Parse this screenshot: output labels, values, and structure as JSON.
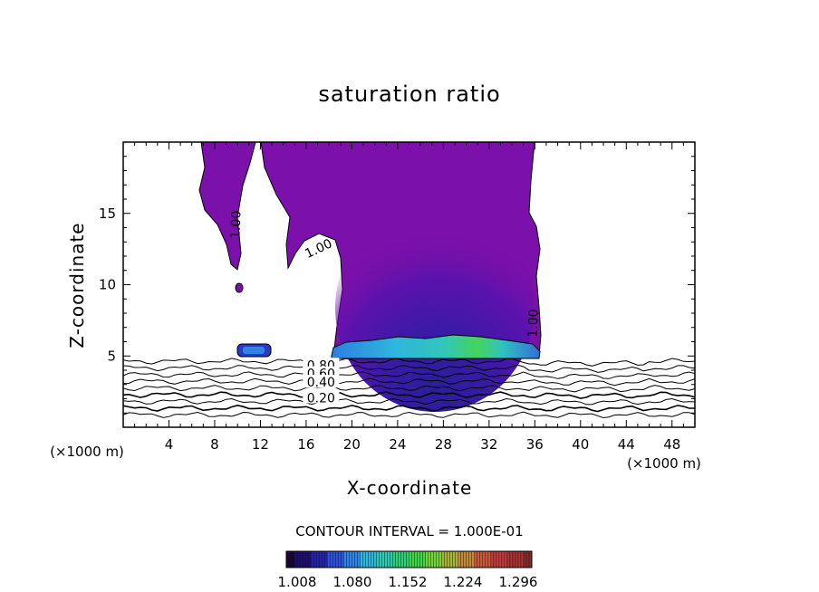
{
  "chart_data": {
    "type": "heatmap",
    "title": "saturation ratio",
    "xlabel": "X-coordinate",
    "ylabel": "Z-coordinate",
    "x_unit_left": "(×1000 m)",
    "x_unit_right": "(×1000 m)",
    "xlim": [
      0,
      50
    ],
    "ylim": [
      0,
      20
    ],
    "x_ticks": [
      4,
      8,
      12,
      16,
      20,
      24,
      28,
      32,
      36,
      40,
      44,
      48
    ],
    "y_ticks": [
      5,
      10,
      15
    ],
    "contour_interval_text": "CONTOUR INTERVAL = 1.000E-01",
    "contour_levels": [
      0.1,
      0.2,
      0.3,
      0.4,
      0.5,
      0.6,
      0.7,
      0.8,
      0.9,
      1.0
    ],
    "contour_labels": [
      {
        "text": "1.00",
        "x": 9.9,
        "y": 14.2,
        "rotate": -88
      },
      {
        "text": "1.00",
        "x": 17.1,
        "y": 12.5,
        "rotate": -25
      },
      {
        "text": "1.00",
        "x": 35.9,
        "y": 7.3,
        "rotate": -88
      },
      {
        "text": "0.80",
        "x": 17.3,
        "y": 4.3,
        "rotate": 0
      },
      {
        "text": "0.60",
        "x": 17.3,
        "y": 3.7,
        "rotate": 0
      },
      {
        "text": "0.40",
        "x": 17.3,
        "y": 3.1,
        "rotate": 0
      },
      {
        "text": "0.20",
        "x": 17.3,
        "y": 2.0,
        "rotate": 0
      }
    ],
    "colorbar": {
      "ticks": [
        "1.008",
        "1.080",
        "1.152",
        "1.224",
        "1.296"
      ],
      "colors": [
        "#1a0838",
        "#1f1070",
        "#2525a8",
        "#2e52d8",
        "#2f86e6",
        "#2fb7de",
        "#2fc8b0",
        "#2fcf75",
        "#41d548",
        "#73d43a",
        "#a7b43a",
        "#c0893c",
        "#c85a3c",
        "#c13c3c",
        "#a83434",
        "#8a2c2c"
      ]
    },
    "supersaturated_color": "#7b10aa"
  }
}
